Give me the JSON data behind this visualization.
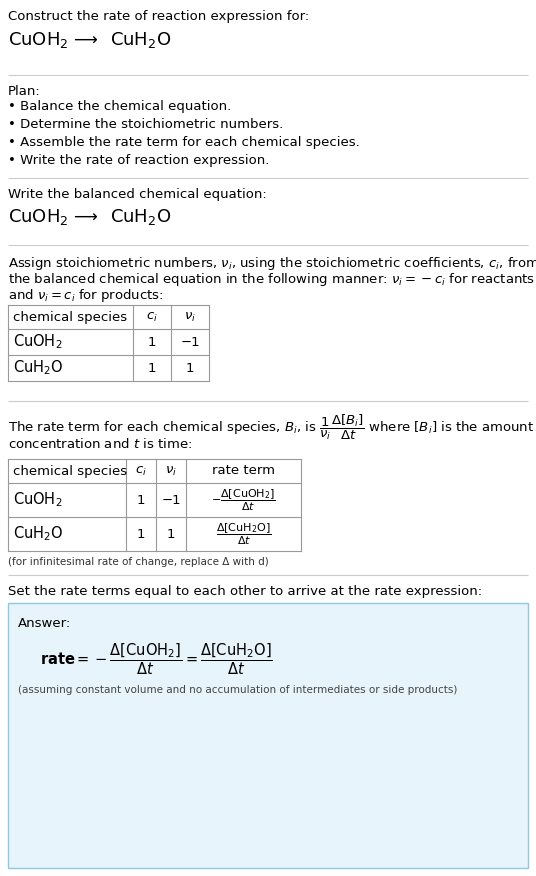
{
  "bg_color": "#ffffff",
  "answer_box_facecolor": "#e8f4fb",
  "answer_box_edgecolor": "#90c8e0",
  "separator_color": "#cccccc",
  "text_color": "#000000",
  "table_line_color": "#999999",
  "plan_bullets": [
    "Balance the chemical equation.",
    "Determine the stoichiometric numbers.",
    "Assemble the rate term for each chemical species.",
    "Write the rate of reaction expression."
  ],
  "infinitesimal_note": "(for infinitesimal rate of change, replace Δ with d)",
  "assuming_note": "(assuming constant volume and no accumulation of intermediates or side products)",
  "fsn": 9.5,
  "fss": 7.5
}
